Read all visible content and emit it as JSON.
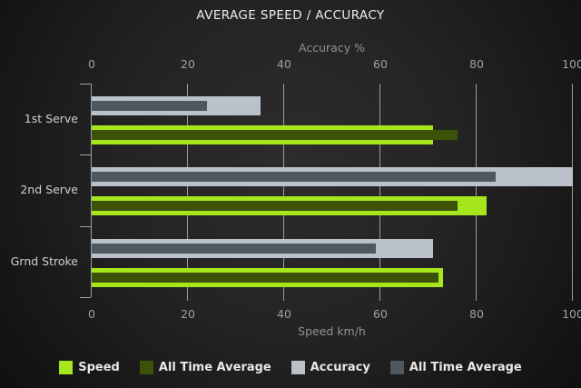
{
  "title": "AVERAGE SPEED / ACCURACY",
  "colors": {
    "speed": "#a5e61d",
    "speed_all_time_average": "#3c5207",
    "accuracy": "#bac1c8",
    "accuracy_all_time_average": "#4f575f",
    "grid": "#b4bac0",
    "text_bright": "#ececec",
    "text_muted": "#9aa0a4"
  },
  "chart_data": {
    "type": "bar",
    "orientation": "horizontal",
    "title": "AVERAGE SPEED / ACCURACY",
    "categories": [
      "1st Serve",
      "2nd Serve",
      "Grnd Stroke"
    ],
    "series": [
      {
        "name": "Speed",
        "axis": "bottom",
        "role": "outer",
        "color": "#a5e61d",
        "values": [
          71,
          82,
          73
        ]
      },
      {
        "name": "All Time Average",
        "axis": "bottom",
        "role": "inner",
        "color": "#3c5207",
        "values": [
          76,
          76,
          72
        ]
      },
      {
        "name": "Accuracy",
        "axis": "top",
        "role": "outer",
        "color": "#bac1c8",
        "values": [
          35,
          100,
          71
        ]
      },
      {
        "name": "All Time Average",
        "axis": "top",
        "role": "inner",
        "color": "#4f575f",
        "values": [
          24,
          84,
          59
        ]
      }
    ],
    "top_axis": {
      "label": "Accuracy %",
      "ticks": [
        0,
        20,
        40,
        60,
        80,
        100
      ],
      "range": [
        0,
        100
      ]
    },
    "bottom_axis": {
      "label": "Speed km/h",
      "ticks": [
        0,
        20,
        40,
        60,
        80,
        100
      ],
      "range": [
        0,
        100
      ]
    },
    "grid": true,
    "legend_position": "bottom"
  },
  "legend": {
    "items": [
      {
        "label": "Speed",
        "color": "#a5e61d"
      },
      {
        "label": "All Time Average",
        "color": "#3c5207"
      },
      {
        "label": "Accuracy",
        "color": "#bac1c8"
      },
      {
        "label": "All Time Average",
        "color": "#4f575f"
      }
    ]
  }
}
